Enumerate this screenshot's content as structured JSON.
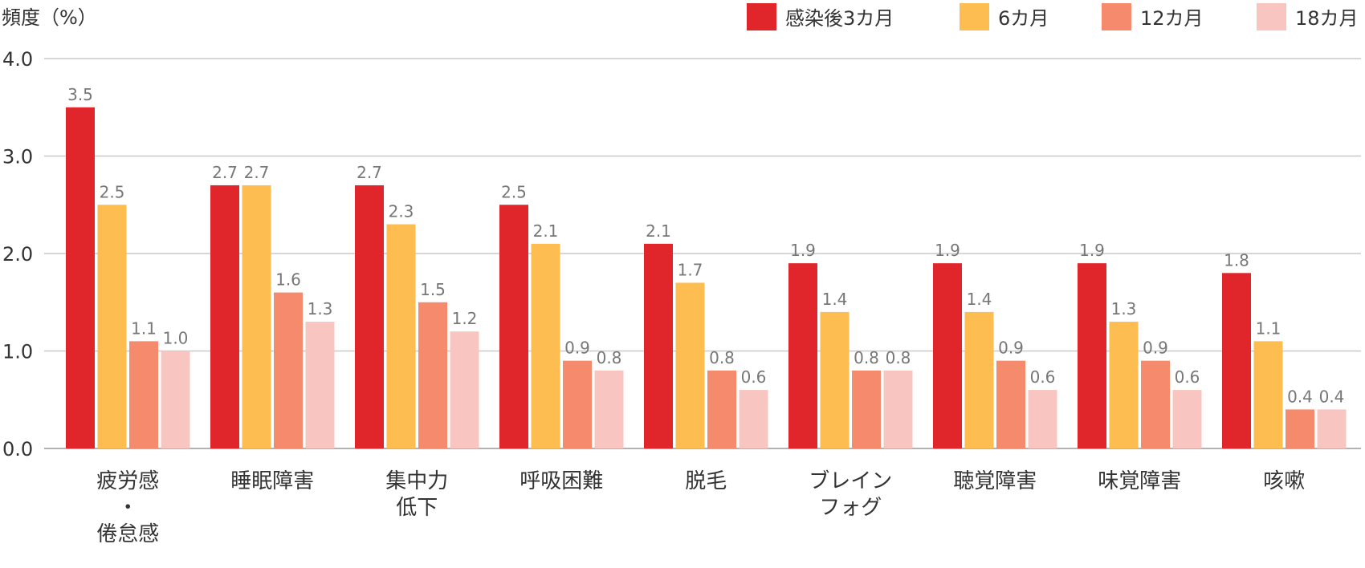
{
  "chart_data": {
    "type": "bar",
    "ylabel": "頻度（%）",
    "ylim": [
      0,
      4.0
    ],
    "yticks": [
      "0.0",
      "1.0",
      "2.0",
      "3.0",
      "4.0"
    ],
    "grid": true,
    "legend_position": "top-right",
    "categories": [
      [
        "疲労感",
        "・",
        "倦怠感"
      ],
      [
        "睡眠障害"
      ],
      [
        "集中力",
        "低下"
      ],
      [
        "呼吸困難"
      ],
      [
        "脱毛"
      ],
      [
        "ブレイン",
        "フォグ"
      ],
      [
        "聴覚障害"
      ],
      [
        "味覚障害"
      ],
      [
        "咳嗽"
      ]
    ],
    "series": [
      {
        "name": "感染後3カ月",
        "color": "#e0262a",
        "values": [
          3.5,
          2.7,
          2.7,
          2.5,
          2.1,
          1.9,
          1.9,
          1.9,
          1.8
        ],
        "labels": [
          "3.5",
          "2.7",
          "2.7",
          "2.5",
          "2.1",
          "1.9",
          "1.9",
          "1.9",
          "1.8"
        ]
      },
      {
        "name": "6カ月",
        "color": "#fdbd50",
        "values": [
          2.5,
          2.7,
          2.3,
          2.1,
          1.7,
          1.4,
          1.4,
          1.3,
          1.1
        ],
        "labels": [
          "2.5",
          "2.7",
          "2.3",
          "2.1",
          "1.7",
          "1.4",
          "1.4",
          "1.3",
          "1.1"
        ]
      },
      {
        "name": "12カ月",
        "color": "#f58a6c",
        "values": [
          1.1,
          1.6,
          1.5,
          0.9,
          0.8,
          0.8,
          0.9,
          0.9,
          0.4
        ],
        "labels": [
          "1.1",
          "1.6",
          "1.5",
          "0.9",
          "0.8",
          "0.8",
          "0.9",
          "0.9",
          "0.4"
        ]
      },
      {
        "name": "18カ月",
        "color": "#f9c5c1",
        "values": [
          1.0,
          1.3,
          1.2,
          0.8,
          0.6,
          0.8,
          0.6,
          0.6,
          0.4
        ],
        "labels": [
          "1.0",
          "1.3",
          "1.2",
          "0.8",
          "0.6",
          "0.8",
          "0.6",
          "0.6",
          "0.4"
        ]
      }
    ]
  }
}
